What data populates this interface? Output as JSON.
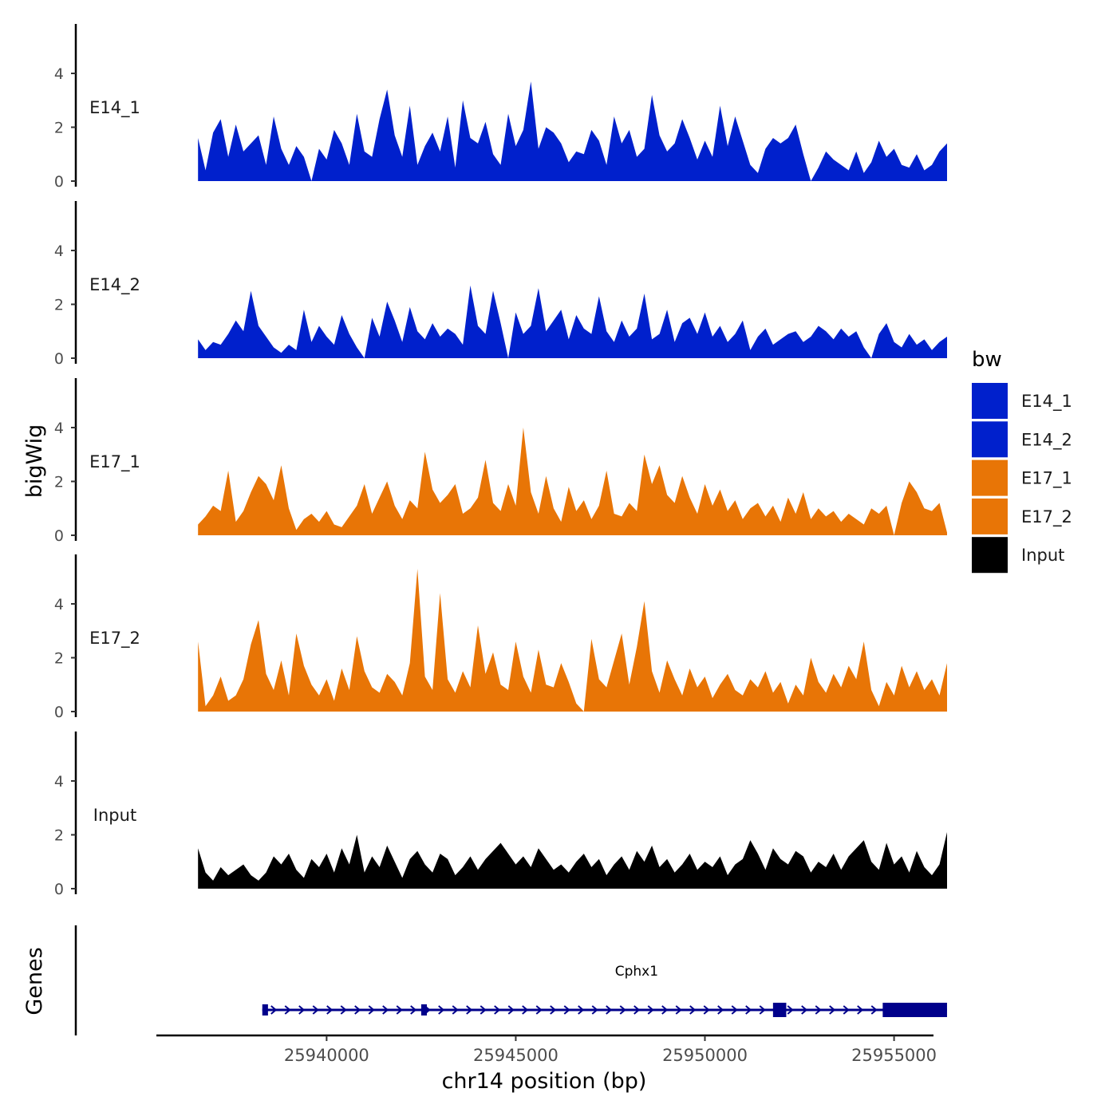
{
  "chart_data": {
    "type": "area",
    "xlabel": "chr14 position (bp)",
    "ylabel": "bigWig",
    "genes_label": "Genes",
    "xlim": [
      25935500,
      25956000
    ],
    "ylim": [
      0,
      5.6
    ],
    "x_ticks": [
      25940000,
      25945000,
      25950000,
      25955000
    ],
    "y_ticks": [
      0,
      2,
      4
    ],
    "legend": {
      "title": "bw",
      "placement": "right",
      "entries": [
        {
          "name": "E14_1",
          "color": "#0020CC"
        },
        {
          "name": "E14_2",
          "color": "#0020CC"
        },
        {
          "name": "E17_1",
          "color": "#E87506"
        },
        {
          "name": "E17_2",
          "color": "#E87506"
        },
        {
          "name": "Input",
          "color": "#000000"
        }
      ]
    },
    "x_start": 25936600,
    "x_end": 25956400,
    "series": [
      {
        "name": "E14_1",
        "color": "#0020CC",
        "values": [
          1.6,
          0.4,
          1.8,
          2.3,
          0.9,
          2.1,
          1.1,
          1.4,
          1.7,
          0.6,
          2.4,
          1.2,
          0.6,
          1.3,
          0.9,
          0.0,
          1.2,
          0.8,
          1.9,
          1.4,
          0.6,
          2.5,
          1.1,
          0.9,
          2.3,
          3.4,
          1.7,
          0.9,
          2.8,
          0.6,
          1.3,
          1.8,
          1.1,
          2.4,
          0.5,
          3.0,
          1.6,
          1.4,
          2.2,
          1.0,
          0.6,
          2.5,
          1.3,
          1.9,
          3.7,
          1.2,
          2.0,
          1.8,
          1.4,
          0.7,
          1.1,
          1.0,
          1.9,
          1.5,
          0.6,
          2.4,
          1.4,
          1.9,
          0.9,
          1.2,
          3.2,
          1.7,
          1.1,
          1.4,
          2.3,
          1.6,
          0.8,
          1.5,
          0.9,
          2.8,
          1.3,
          2.4,
          1.5,
          0.6,
          0.3,
          1.2,
          1.6,
          1.4,
          1.6,
          2.1,
          1.0,
          0.0,
          0.5,
          1.1,
          0.8,
          0.6,
          0.4,
          1.1,
          0.3,
          0.7,
          1.5,
          0.9,
          1.2,
          0.6,
          0.5,
          1.0,
          0.4,
          0.6,
          1.1,
          1.4
        ]
      },
      {
        "name": "E14_2",
        "color": "#0020CC",
        "values": [
          0.7,
          0.3,
          0.6,
          0.5,
          0.9,
          1.4,
          1.0,
          2.5,
          1.2,
          0.8,
          0.4,
          0.2,
          0.5,
          0.3,
          1.8,
          0.6,
          1.2,
          0.8,
          0.5,
          1.6,
          0.9,
          0.4,
          0.0,
          1.5,
          0.8,
          2.1,
          1.4,
          0.6,
          1.9,
          1.0,
          0.7,
          1.3,
          0.8,
          1.1,
          0.9,
          0.5,
          2.7,
          1.2,
          0.9,
          2.5,
          1.3,
          0.0,
          1.7,
          0.9,
          1.2,
          2.6,
          1.0,
          1.4,
          1.8,
          0.7,
          1.6,
          1.1,
          0.9,
          2.3,
          1.0,
          0.6,
          1.4,
          0.8,
          1.1,
          2.4,
          0.7,
          0.9,
          1.8,
          0.6,
          1.3,
          1.5,
          0.9,
          1.7,
          0.8,
          1.2,
          0.6,
          0.9,
          1.4,
          0.3,
          0.8,
          1.1,
          0.5,
          0.7,
          0.9,
          1.0,
          0.6,
          0.8,
          1.2,
          1.0,
          0.7,
          1.1,
          0.8,
          1.0,
          0.4,
          0.0,
          0.9,
          1.3,
          0.6,
          0.4,
          0.9,
          0.5,
          0.7,
          0.3,
          0.6,
          0.8
        ]
      },
      {
        "name": "E17_1",
        "color": "#E87506",
        "values": [
          0.4,
          0.7,
          1.1,
          0.9,
          2.4,
          0.5,
          0.9,
          1.6,
          2.2,
          1.9,
          1.3,
          2.6,
          1.0,
          0.2,
          0.6,
          0.8,
          0.5,
          0.9,
          0.4,
          0.3,
          0.7,
          1.1,
          1.9,
          0.8,
          1.4,
          2.0,
          1.1,
          0.6,
          1.3,
          1.0,
          3.1,
          1.7,
          1.2,
          1.5,
          1.9,
          0.8,
          1.0,
          1.4,
          2.8,
          1.2,
          0.9,
          1.9,
          1.1,
          4.0,
          1.6,
          0.8,
          2.2,
          1.0,
          0.5,
          1.8,
          0.9,
          1.3,
          0.6,
          1.1,
          2.4,
          0.8,
          0.7,
          1.2,
          0.9,
          3.0,
          1.9,
          2.6,
          1.5,
          1.2,
          2.2,
          1.4,
          0.8,
          1.9,
          1.1,
          1.7,
          0.9,
          1.3,
          0.6,
          1.0,
          1.2,
          0.7,
          1.1,
          0.5,
          1.4,
          0.8,
          1.6,
          0.6,
          1.0,
          0.7,
          0.9,
          0.5,
          0.8,
          0.6,
          0.4,
          1.0,
          0.8,
          1.1,
          0.0,
          1.2,
          2.0,
          1.6,
          1.0,
          0.9,
          1.2,
          0.1
        ]
      },
      {
        "name": "E17_2",
        "color": "#E87506",
        "values": [
          2.6,
          0.2,
          0.6,
          1.3,
          0.4,
          0.6,
          1.2,
          2.5,
          3.4,
          1.4,
          0.8,
          1.9,
          0.6,
          2.9,
          1.7,
          1.0,
          0.6,
          1.2,
          0.4,
          1.6,
          0.8,
          2.8,
          1.5,
          0.9,
          0.7,
          1.4,
          1.1,
          0.6,
          1.8,
          5.3,
          1.3,
          0.8,
          4.4,
          1.2,
          0.7,
          1.5,
          0.9,
          3.2,
          1.4,
          2.2,
          1.0,
          0.8,
          2.6,
          1.3,
          0.7,
          2.3,
          1.0,
          0.9,
          1.8,
          1.1,
          0.3,
          0.0,
          2.7,
          1.2,
          0.9,
          1.9,
          2.9,
          1.0,
          2.4,
          4.1,
          1.5,
          0.7,
          1.9,
          1.2,
          0.6,
          1.6,
          0.9,
          1.3,
          0.5,
          1.0,
          1.4,
          0.8,
          0.6,
          1.2,
          0.9,
          1.5,
          0.7,
          1.1,
          0.3,
          1.0,
          0.6,
          2.0,
          1.1,
          0.7,
          1.4,
          0.9,
          1.7,
          1.2,
          2.6,
          0.8,
          0.2,
          1.1,
          0.6,
          1.7,
          0.9,
          1.5,
          0.8,
          1.2,
          0.6,
          1.8
        ]
      },
      {
        "name": "Input",
        "color": "#000000",
        "values": [
          1.5,
          0.6,
          0.3,
          0.8,
          0.5,
          0.7,
          0.9,
          0.5,
          0.3,
          0.6,
          1.2,
          0.9,
          1.3,
          0.7,
          0.4,
          1.1,
          0.8,
          1.3,
          0.6,
          1.5,
          0.9,
          2.0,
          0.6,
          1.2,
          0.8,
          1.6,
          1.0,
          0.4,
          1.1,
          1.4,
          0.9,
          0.6,
          1.3,
          1.1,
          0.5,
          0.8,
          1.2,
          0.7,
          1.1,
          1.4,
          1.7,
          1.3,
          0.9,
          1.2,
          0.8,
          1.5,
          1.1,
          0.7,
          0.9,
          0.6,
          1.0,
          1.3,
          0.8,
          1.1,
          0.5,
          0.9,
          1.2,
          0.7,
          1.4,
          1.0,
          1.6,
          0.8,
          1.1,
          0.6,
          0.9,
          1.3,
          0.7,
          1.0,
          0.8,
          1.2,
          0.5,
          0.9,
          1.1,
          1.8,
          1.3,
          0.7,
          1.5,
          1.1,
          0.9,
          1.4,
          1.2,
          0.6,
          1.0,
          0.8,
          1.3,
          0.7,
          1.2,
          1.5,
          1.8,
          1.0,
          0.7,
          1.7,
          0.9,
          1.2,
          0.6,
          1.4,
          0.8,
          0.5,
          0.9,
          2.1
        ]
      }
    ],
    "genes": [
      {
        "name": "Cphx1",
        "start": 25938300,
        "end": 25956400,
        "strand": "+",
        "color": "#00008B",
        "exons": [
          [
            25938300,
            25938450
          ],
          [
            25942500,
            25942650
          ],
          [
            25951800,
            25952150
          ],
          [
            25954700,
            25956400
          ]
        ]
      }
    ]
  }
}
